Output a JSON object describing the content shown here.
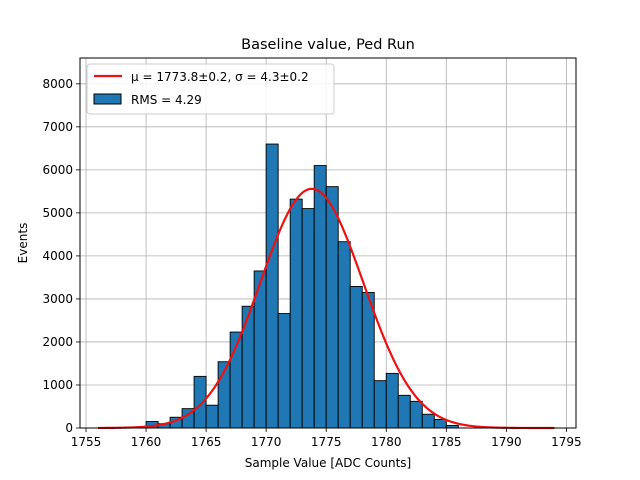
{
  "chart_data": {
    "type": "bar",
    "title": "Baseline value, Ped Run",
    "xlabel": "Sample Value [ADC Counts]",
    "ylabel": "Events",
    "xlim": [
      1754.5,
      1795.8
    ],
    "ylim": [
      0,
      8600
    ],
    "xticks": [
      1755,
      1760,
      1765,
      1770,
      1775,
      1780,
      1785,
      1790,
      1795
    ],
    "yticks": [
      0,
      1000,
      2000,
      3000,
      4000,
      5000,
      6000,
      7000,
      8000
    ],
    "grid": true,
    "legend_position": "top-left",
    "bin_width": 1,
    "bins": [
      {
        "x": 1760.5,
        "count": 150
      },
      {
        "x": 1761.5,
        "count": 100
      },
      {
        "x": 1762.5,
        "count": 250
      },
      {
        "x": 1763.5,
        "count": 450
      },
      {
        "x": 1764.5,
        "count": 1200
      },
      {
        "x": 1765.5,
        "count": 530
      },
      {
        "x": 1766.5,
        "count": 1540
      },
      {
        "x": 1767.5,
        "count": 2230
      },
      {
        "x": 1768.5,
        "count": 2830
      },
      {
        "x": 1769.5,
        "count": 3650
      },
      {
        "x": 1770.5,
        "count": 6600
      },
      {
        "x": 1771.5,
        "count": 2660
      },
      {
        "x": 1772.5,
        "count": 5320
      },
      {
        "x": 1773.5,
        "count": 5100
      },
      {
        "x": 1774.5,
        "count": 6100
      },
      {
        "x": 1775.5,
        "count": 5610
      },
      {
        "x": 1776.5,
        "count": 4330
      },
      {
        "x": 1777.5,
        "count": 3290
      },
      {
        "x": 1778.5,
        "count": 3150
      },
      {
        "x": 1779.5,
        "count": 1100
      },
      {
        "x": 1780.5,
        "count": 1270
      },
      {
        "x": 1781.5,
        "count": 760
      },
      {
        "x": 1782.5,
        "count": 620
      },
      {
        "x": 1783.5,
        "count": 320
      },
      {
        "x": 1784.5,
        "count": 200
      },
      {
        "x": 1785.5,
        "count": 60
      }
    ],
    "fit": {
      "mu": 1773.8,
      "sigma": 4.3,
      "amplitude": 5560,
      "x_range": [
        1756,
        1794
      ],
      "color": "#ee1111"
    },
    "bar_color": "#1f77b4",
    "legend": [
      {
        "kind": "line",
        "label": "μ = 1773.8±0.2, σ = 4.3±0.2"
      },
      {
        "kind": "patch",
        "label": "RMS = 4.29"
      }
    ]
  }
}
